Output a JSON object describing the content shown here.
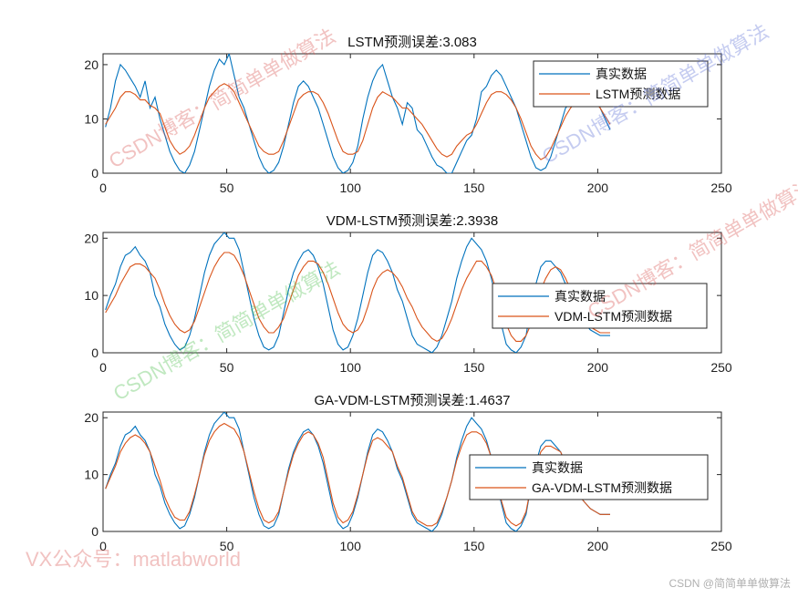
{
  "chart_data": [
    {
      "type": "line",
      "title": "LSTM预测误差:3.083",
      "xlabel": "",
      "ylabel": "",
      "xlim": [
        0,
        250
      ],
      "ylim": [
        0,
        22
      ],
      "xticks": [
        0,
        50,
        100,
        150,
        200,
        250
      ],
      "yticks": [
        0,
        10,
        20
      ],
      "grid": false,
      "legend_position": "upper right",
      "x": [
        1,
        3,
        5,
        7,
        9,
        11,
        13,
        15,
        17,
        19,
        21,
        23,
        25,
        27,
        29,
        31,
        33,
        35,
        37,
        39,
        41,
        43,
        45,
        47,
        49,
        51,
        53,
        55,
        57,
        59,
        61,
        63,
        65,
        67,
        69,
        71,
        73,
        75,
        77,
        79,
        81,
        83,
        85,
        87,
        89,
        91,
        93,
        95,
        97,
        99,
        101,
        103,
        105,
        107,
        109,
        111,
        113,
        115,
        117,
        119,
        121,
        123,
        125,
        127,
        129,
        131,
        133,
        135,
        137,
        139,
        141,
        143,
        145,
        147,
        149,
        151,
        153,
        155,
        157,
        159,
        161,
        163,
        165,
        167,
        169,
        171,
        173,
        175,
        177,
        179,
        181,
        183,
        185,
        187,
        189,
        191,
        193,
        195,
        197,
        199,
        201,
        203,
        205
      ],
      "series": [
        {
          "name": "真实数据",
          "color": "#0072BD",
          "values": [
            8.5,
            12,
            17,
            20,
            19,
            17.5,
            16,
            14,
            17,
            12,
            14,
            10,
            7,
            4,
            2,
            0.5,
            0,
            1.5,
            4,
            8,
            12,
            16,
            19,
            21,
            20,
            22,
            18,
            14,
            12,
            9,
            6,
            3,
            1,
            0,
            0.5,
            2,
            5,
            9,
            13,
            16,
            17,
            16,
            14,
            12,
            9,
            6,
            3,
            1,
            0,
            0.5,
            2,
            5,
            10,
            14,
            17,
            19,
            20,
            17,
            14,
            12,
            9,
            13,
            12,
            8,
            7,
            5,
            3,
            1.5,
            1,
            0,
            0,
            2,
            4,
            6,
            7,
            10,
            15,
            16,
            18,
            19,
            18,
            16,
            14,
            12,
            9,
            6,
            3,
            1,
            0.5,
            1,
            3,
            6,
            9,
            12,
            13,
            14,
            15,
            16,
            15,
            14,
            12,
            10,
            8
          ]
        },
        {
          "name": "LSTM预测数据",
          "color": "#D95319",
          "values": [
            9,
            10.5,
            12,
            14,
            15,
            15,
            14.5,
            13.5,
            13.5,
            12.5,
            12,
            11,
            8.5,
            6,
            4.5,
            3.5,
            4,
            5,
            7,
            9.5,
            12,
            14,
            15,
            16,
            16.5,
            16,
            15,
            13,
            11,
            9,
            7,
            5,
            4,
            3.5,
            3.5,
            4,
            6,
            8.5,
            11,
            13.5,
            14.5,
            15,
            15,
            14.5,
            13,
            11,
            8.5,
            6,
            4,
            3.5,
            3.5,
            4,
            6,
            9,
            12,
            14,
            15,
            14.5,
            14,
            13,
            12,
            12,
            11,
            10,
            9,
            7.5,
            6,
            4.5,
            3.5,
            3,
            3.5,
            5,
            6,
            7,
            7.5,
            9,
            11,
            13,
            14.5,
            15,
            15,
            14.5,
            13.5,
            12,
            10,
            7.5,
            5,
            3.5,
            2.5,
            3,
            4.5,
            6.5,
            8.5,
            10.5,
            12,
            13,
            14,
            14.5,
            14,
            13,
            12,
            10.5,
            9
          ]
        }
      ]
    },
    {
      "type": "line",
      "title": "VDM-LSTM预测误差:2.3938",
      "xlabel": "",
      "ylabel": "",
      "xlim": [
        0,
        250
      ],
      "ylim": [
        0,
        21
      ],
      "xticks": [
        0,
        50,
        100,
        150,
        200,
        250
      ],
      "yticks": [
        0,
        10,
        20
      ],
      "grid": false,
      "legend_position": "east",
      "x": [
        1,
        3,
        5,
        7,
        9,
        11,
        13,
        15,
        17,
        19,
        21,
        23,
        25,
        27,
        29,
        31,
        33,
        35,
        37,
        39,
        41,
        43,
        45,
        47,
        49,
        51,
        53,
        55,
        57,
        59,
        61,
        63,
        65,
        67,
        69,
        71,
        73,
        75,
        77,
        79,
        81,
        83,
        85,
        87,
        89,
        91,
        93,
        95,
        97,
        99,
        101,
        103,
        105,
        107,
        109,
        111,
        113,
        115,
        117,
        119,
        121,
        123,
        125,
        127,
        129,
        131,
        133,
        135,
        137,
        139,
        141,
        143,
        145,
        147,
        149,
        151,
        153,
        155,
        157,
        159,
        161,
        163,
        165,
        167,
        169,
        171,
        173,
        175,
        177,
        179,
        181,
        183,
        185,
        187,
        189,
        191,
        193,
        195,
        197,
        199,
        201,
        203,
        205
      ],
      "series": [
        {
          "name": "真实数据",
          "color": "#0072BD",
          "values": [
            7.5,
            10,
            12,
            15,
            17,
            17.5,
            18.5,
            17,
            16,
            14,
            10,
            8,
            5,
            3,
            1.5,
            0.5,
            1,
            3,
            6,
            10,
            14,
            17,
            19,
            20,
            21,
            20,
            20,
            18,
            14,
            10,
            6,
            3,
            1,
            0.5,
            1,
            3,
            7,
            11,
            14,
            16,
            17.5,
            18,
            17,
            15,
            12,
            8,
            4,
            1.5,
            0.5,
            1,
            3,
            6,
            10,
            14,
            17,
            18,
            17.5,
            16,
            14,
            11,
            9,
            6,
            3,
            1.5,
            1,
            0.5,
            0,
            1,
            3,
            6,
            9,
            13,
            16,
            18.5,
            20,
            19,
            18,
            16,
            13,
            9,
            5,
            1.5,
            0.5,
            0,
            1,
            3,
            8,
            12,
            15,
            16,
            16,
            15,
            14,
            12,
            10,
            8,
            6,
            5,
            4,
            3.5,
            3,
            3,
            3
          ]
        },
        {
          "name": "VDM-LSTM预测数据",
          "color": "#D95319",
          "values": [
            7,
            8.5,
            10,
            12,
            13.5,
            15,
            15.5,
            15.5,
            15,
            14,
            13,
            11,
            8.5,
            6.5,
            5,
            4,
            3.5,
            4,
            5.5,
            8,
            10.5,
            13,
            15,
            16.5,
            17.5,
            17.5,
            17,
            15.5,
            13.5,
            11,
            8.5,
            6,
            4.5,
            3.5,
            3.5,
            4.5,
            6,
            8.5,
            11,
            13.5,
            15,
            16,
            16,
            15.5,
            14,
            12,
            9.5,
            7,
            5,
            4,
            3.5,
            4,
            5.5,
            8,
            11,
            13,
            14,
            14.5,
            14,
            13,
            11.5,
            9.5,
            8,
            6,
            4.5,
            3.5,
            2.5,
            2,
            2.5,
            4,
            6,
            8.5,
            11,
            13,
            14.5,
            16,
            16,
            15,
            13.5,
            11,
            8,
            5,
            3,
            2,
            2,
            3,
            5,
            8,
            11,
            13,
            14.5,
            15,
            14.5,
            13,
            11,
            9,
            7,
            5.5,
            4.5,
            4,
            3.5,
            3.5,
            3.5
          ]
        }
      ]
    },
    {
      "type": "line",
      "title": "GA-VDM-LSTM预测误差:1.4637",
      "xlabel": "",
      "ylabel": "",
      "xlim": [
        0,
        250
      ],
      "ylim": [
        0,
        21
      ],
      "xticks": [
        0,
        50,
        100,
        150,
        200,
        250
      ],
      "yticks": [
        0,
        10,
        20
      ],
      "grid": false,
      "legend_position": "east",
      "x": [
        1,
        3,
        5,
        7,
        9,
        11,
        13,
        15,
        17,
        19,
        21,
        23,
        25,
        27,
        29,
        31,
        33,
        35,
        37,
        39,
        41,
        43,
        45,
        47,
        49,
        51,
        53,
        55,
        57,
        59,
        61,
        63,
        65,
        67,
        69,
        71,
        73,
        75,
        77,
        79,
        81,
        83,
        85,
        87,
        89,
        91,
        93,
        95,
        97,
        99,
        101,
        103,
        105,
        107,
        109,
        111,
        113,
        115,
        117,
        119,
        121,
        123,
        125,
        127,
        129,
        131,
        133,
        135,
        137,
        139,
        141,
        143,
        145,
        147,
        149,
        151,
        153,
        155,
        157,
        159,
        161,
        163,
        165,
        167,
        169,
        171,
        173,
        175,
        177,
        179,
        181,
        183,
        185,
        187,
        189,
        191,
        193,
        195,
        197,
        199,
        201,
        203,
        205
      ],
      "series": [
        {
          "name": "真实数据",
          "color": "#0072BD",
          "values": [
            7.5,
            10,
            12,
            15,
            17,
            17.5,
            18.5,
            17,
            16,
            14,
            10,
            8,
            5,
            3,
            1.5,
            0.5,
            1,
            3,
            6,
            10,
            14,
            17,
            19,
            20,
            21,
            20,
            20,
            18,
            14,
            10,
            6,
            3,
            1,
            0.5,
            1,
            3,
            7,
            11,
            14,
            16,
            17.5,
            18,
            17,
            15,
            12,
            8,
            4,
            1.5,
            0.5,
            1,
            3,
            6,
            10,
            14,
            17,
            18,
            17.5,
            16,
            14,
            11,
            9,
            6,
            3,
            1.5,
            1,
            0.5,
            0,
            1,
            3,
            6,
            9,
            13,
            16,
            18.5,
            20,
            19,
            18,
            16,
            13,
            9,
            5,
            1.5,
            0.5,
            0,
            1,
            3,
            8,
            12,
            15,
            16,
            16,
            15,
            14,
            12,
            10,
            8,
            6,
            5,
            4,
            3.5,
            3,
            3,
            3
          ]
        },
        {
          "name": "GA-VDM-LSTM预测数据",
          "color": "#D95319",
          "values": [
            7.5,
            9.5,
            11.5,
            14,
            15.5,
            16.5,
            17,
            16.5,
            15.5,
            14,
            11.5,
            9,
            6,
            4,
            2.5,
            2,
            2,
            3.5,
            6.5,
            10,
            13.5,
            16,
            17.5,
            18.5,
            19,
            18.5,
            18,
            16.5,
            14,
            10.5,
            7,
            4,
            2,
            1.5,
            2,
            3.5,
            7,
            10.5,
            13.5,
            15.5,
            17,
            17.5,
            17,
            15.5,
            13,
            9,
            5,
            2.5,
            1.5,
            2,
            3.5,
            6.5,
            10,
            13.5,
            16,
            16.5,
            16,
            15,
            14,
            11.5,
            9.5,
            6.5,
            3.5,
            2,
            1.5,
            1,
            1,
            1.5,
            3.5,
            6,
            9,
            12.5,
            15,
            17,
            17.5,
            17.5,
            17,
            15.5,
            13,
            9.5,
            5.5,
            2.5,
            1.5,
            1,
            1.5,
            3.5,
            8,
            11.5,
            14,
            15,
            15,
            14.5,
            14,
            12,
            10,
            8,
            6,
            5,
            4,
            3.5,
            3,
            3,
            3
          ]
        }
      ]
    }
  ],
  "panels": [
    {
      "title": "LSTM预测误差:3.083",
      "legend": [
        "真实数据",
        "LSTM预测数据"
      ]
    },
    {
      "title": "VDM-LSTM预测误差:2.3938",
      "legend": [
        "真实数据",
        "VDM-LSTM预测数据"
      ]
    },
    {
      "title": "GA-VDM-LSTM预测误差:1.4637",
      "legend": [
        "真实数据",
        "GA-VDM-LSTM预测数据"
      ]
    }
  ],
  "watermarks": {
    "blog": "CSDN博客：简简单单做算法",
    "vx": "VX公众号：matlabworld",
    "footer": "CSDN @简简单单做算法"
  }
}
